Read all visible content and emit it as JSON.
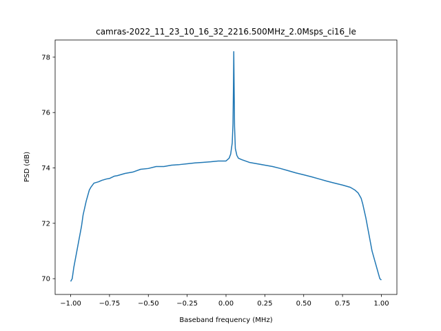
{
  "chart_data": {
    "type": "line",
    "title": "camras-2022_11_23_10_16_32_2216.500MHz_2.0Msps_ci16_le",
    "x_label": "Baseband frequency (MHz)",
    "y_label": "PSD (dB)",
    "x": [
      -1.0,
      -0.99,
      -0.98,
      -0.96,
      -0.95,
      -0.93,
      -0.92,
      -0.9,
      -0.88,
      -0.87,
      -0.85,
      -0.82,
      -0.8,
      -0.77,
      -0.75,
      -0.72,
      -0.7,
      -0.65,
      -0.6,
      -0.55,
      -0.5,
      -0.45,
      -0.4,
      -0.35,
      -0.3,
      -0.25,
      -0.2,
      -0.15,
      -0.1,
      -0.05,
      0.0,
      0.02,
      0.03,
      0.04,
      0.045,
      0.048,
      0.05,
      0.052,
      0.055,
      0.06,
      0.07,
      0.08,
      0.1,
      0.15,
      0.2,
      0.25,
      0.3,
      0.35,
      0.4,
      0.45,
      0.5,
      0.55,
      0.6,
      0.65,
      0.7,
      0.75,
      0.8,
      0.83,
      0.85,
      0.87,
      0.88,
      0.9,
      0.92,
      0.94,
      0.96,
      0.98,
      0.99,
      1.0
    ],
    "series": [
      {
        "name": "PSD",
        "color": "#1f77b4",
        "values": [
          69.9,
          70.0,
          70.4,
          71.0,
          71.3,
          71.9,
          72.3,
          72.8,
          73.2,
          73.3,
          73.45,
          73.5,
          73.55,
          73.6,
          73.62,
          73.7,
          73.72,
          73.8,
          73.85,
          73.95,
          73.98,
          74.05,
          74.05,
          74.1,
          74.12,
          74.15,
          74.18,
          74.2,
          74.22,
          74.25,
          74.25,
          74.35,
          74.5,
          74.9,
          75.6,
          77.0,
          78.2,
          77.1,
          75.5,
          74.7,
          74.45,
          74.35,
          74.3,
          74.2,
          74.15,
          74.1,
          74.05,
          73.98,
          73.9,
          73.82,
          73.75,
          73.68,
          73.6,
          73.52,
          73.45,
          73.38,
          73.3,
          73.2,
          73.1,
          72.9,
          72.7,
          72.2,
          71.6,
          71.0,
          70.6,
          70.2,
          70.0,
          69.95
        ]
      }
    ],
    "xlim": [
      -1.1,
      1.1
    ],
    "ylim": [
      69.43,
      78.62
    ],
    "xticks": [
      {
        "value": -1.0,
        "label": "−1.00"
      },
      {
        "value": -0.75,
        "label": "−0.75"
      },
      {
        "value": -0.5,
        "label": "−0.50"
      },
      {
        "value": -0.25,
        "label": "−0.25"
      },
      {
        "value": 0.0,
        "label": "0.00"
      },
      {
        "value": 0.25,
        "label": "0.25"
      },
      {
        "value": 0.5,
        "label": "0.50"
      },
      {
        "value": 0.75,
        "label": "0.75"
      },
      {
        "value": 1.0,
        "label": "1.00"
      }
    ],
    "yticks": [
      70,
      72,
      74,
      76,
      78
    ],
    "grid": false
  }
}
